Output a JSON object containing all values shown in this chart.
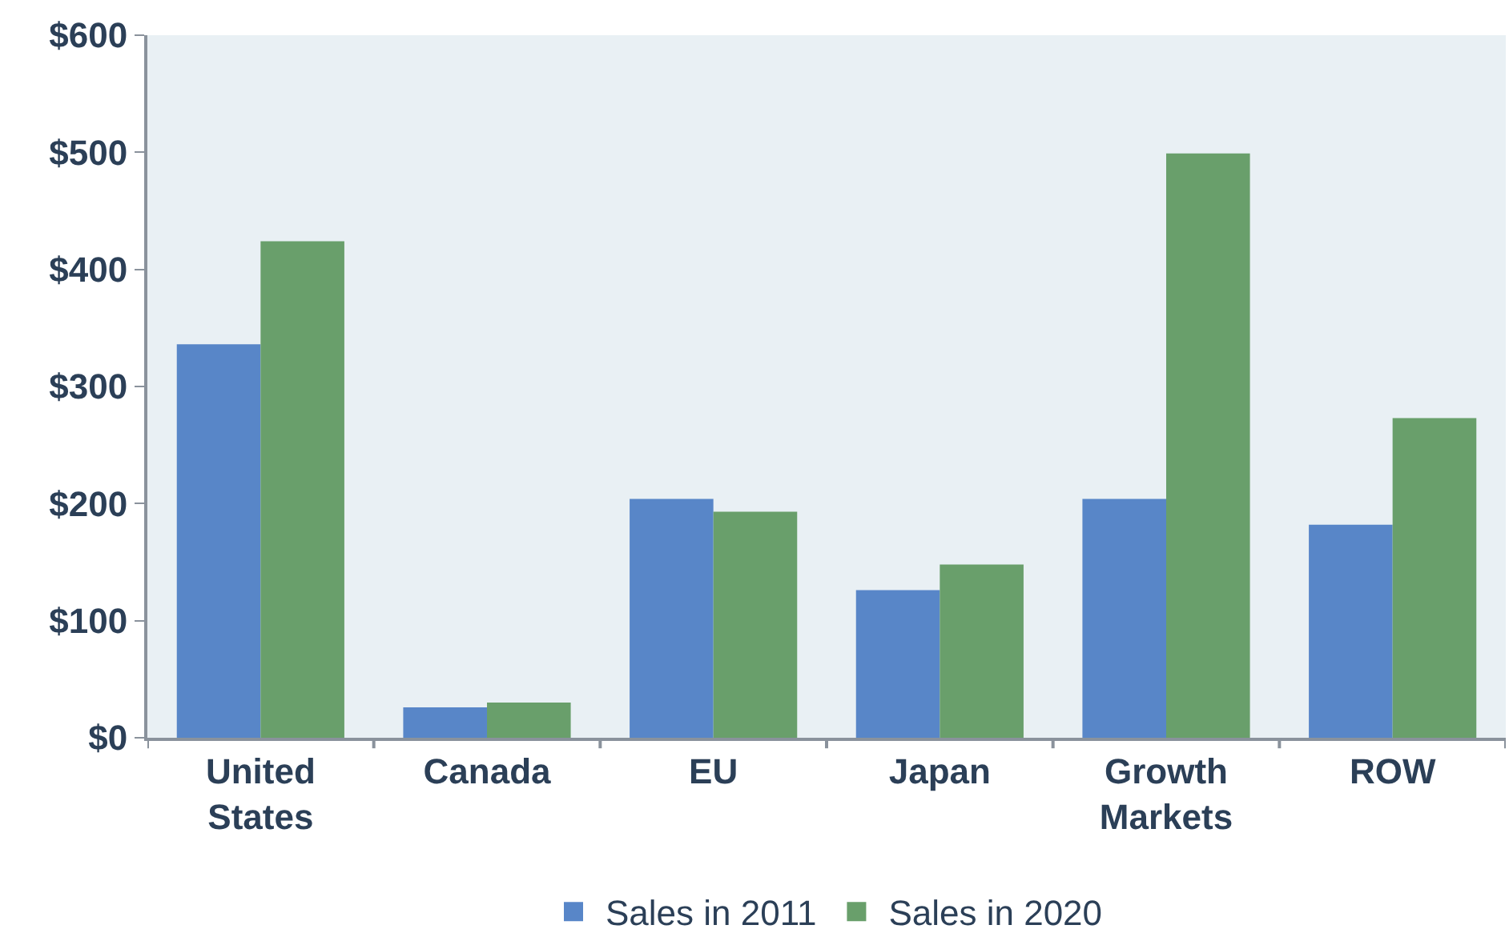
{
  "chart_data": {
    "type": "bar",
    "categories": [
      "United\nStates",
      "Canada",
      "EU",
      "Japan",
      "Growth\nMarkets",
      "ROW"
    ],
    "series": [
      {
        "name": "Sales in 2011",
        "color": "#5886c8",
        "values": [
          336,
          26,
          204,
          126,
          204,
          182
        ]
      },
      {
        "name": "Sales in 2020",
        "color": "#699f6b",
        "values": [
          424,
          30,
          193,
          148,
          499,
          273
        ]
      }
    ],
    "ylim": [
      0,
      600
    ],
    "yticks": [
      {
        "value": 0,
        "label": "$0"
      },
      {
        "value": 100,
        "label": "$100"
      },
      {
        "value": 200,
        "label": "$200"
      },
      {
        "value": 300,
        "label": "$300"
      },
      {
        "value": 400,
        "label": "$400"
      },
      {
        "value": 500,
        "label": "$500"
      },
      {
        "value": 600,
        "label": "$600"
      }
    ],
    "grid": false,
    "legend": "bottom"
  }
}
